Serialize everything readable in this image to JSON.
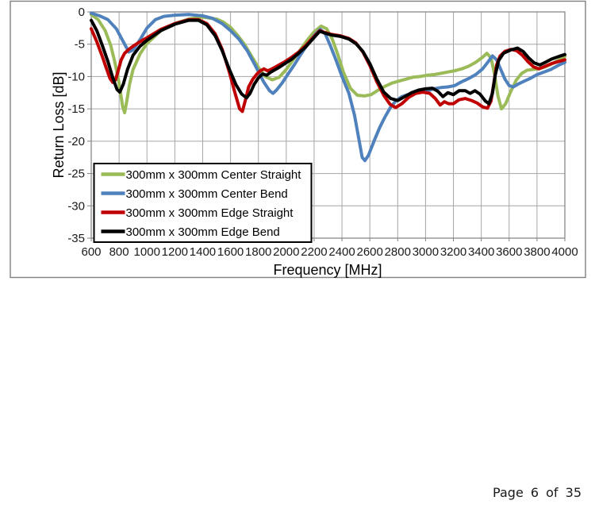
{
  "page": {
    "footer": "Page 6 of 35"
  },
  "chart_data": {
    "type": "line",
    "title": "",
    "xlabel": "Frequency [MHz]",
    "ylabel": "Return Loss [dB]",
    "xlim": [
      600,
      4000
    ],
    "ylim": [
      -35,
      0
    ],
    "xtick_step": 200,
    "ytick_step": 5,
    "grid": true,
    "legend_position": "inside-lower-left",
    "grid_color": "#a6a6a6",
    "axis_color": "#808080",
    "frame_color": "#808080",
    "series": [
      {
        "name": "300mm x 300mm Center Straight",
        "color": "#9BBB59",
        "points": [
          [
            600,
            -0.4
          ],
          [
            650,
            -1.2
          ],
          [
            700,
            -2.9
          ],
          [
            740,
            -5.2
          ],
          [
            770,
            -7.8
          ],
          [
            800,
            -11.0
          ],
          [
            825,
            -14.6
          ],
          [
            840,
            -15.6
          ],
          [
            855,
            -13.8
          ],
          [
            875,
            -11.2
          ],
          [
            900,
            -8.9
          ],
          [
            950,
            -6.5
          ],
          [
            1000,
            -4.9
          ],
          [
            1100,
            -2.9
          ],
          [
            1200,
            -1.8
          ],
          [
            1300,
            -1.1
          ],
          [
            1400,
            -0.8
          ],
          [
            1500,
            -1.1
          ],
          [
            1550,
            -1.6
          ],
          [
            1600,
            -2.4
          ],
          [
            1650,
            -3.6
          ],
          [
            1700,
            -5.0
          ],
          [
            1750,
            -6.8
          ],
          [
            1800,
            -8.6
          ],
          [
            1850,
            -10.0
          ],
          [
            1900,
            -10.5
          ],
          [
            1950,
            -10.1
          ],
          [
            2000,
            -8.9
          ],
          [
            2050,
            -7.4
          ],
          [
            2100,
            -5.9
          ],
          [
            2150,
            -4.4
          ],
          [
            2200,
            -3.1
          ],
          [
            2250,
            -2.2
          ],
          [
            2290,
            -2.6
          ],
          [
            2330,
            -4.2
          ],
          [
            2370,
            -6.6
          ],
          [
            2410,
            -9.3
          ],
          [
            2460,
            -11.8
          ],
          [
            2510,
            -12.9
          ],
          [
            2560,
            -13.0
          ],
          [
            2610,
            -12.8
          ],
          [
            2660,
            -12.1
          ],
          [
            2710,
            -11.5
          ],
          [
            2760,
            -11.0
          ],
          [
            2810,
            -10.7
          ],
          [
            2860,
            -10.4
          ],
          [
            2910,
            -10.1
          ],
          [
            2960,
            -10.0
          ],
          [
            3010,
            -9.8
          ],
          [
            3060,
            -9.7
          ],
          [
            3110,
            -9.5
          ],
          [
            3160,
            -9.3
          ],
          [
            3210,
            -9.1
          ],
          [
            3260,
            -8.8
          ],
          [
            3310,
            -8.4
          ],
          [
            3360,
            -7.8
          ],
          [
            3410,
            -7.0
          ],
          [
            3440,
            -6.4
          ],
          [
            3470,
            -7.1
          ],
          [
            3495,
            -9.6
          ],
          [
            3520,
            -13.0
          ],
          [
            3545,
            -15.0
          ],
          [
            3575,
            -14.2
          ],
          [
            3610,
            -12.4
          ],
          [
            3650,
            -10.6
          ],
          [
            3690,
            -9.5
          ],
          [
            3730,
            -9.0
          ],
          [
            3770,
            -8.9
          ],
          [
            3810,
            -8.8
          ],
          [
            3860,
            -8.5
          ],
          [
            3910,
            -8.0
          ],
          [
            3960,
            -7.4
          ],
          [
            4000,
            -6.9
          ]
        ]
      },
      {
        "name": "300mm x 300mm Center Bend",
        "color": "#4F81BD",
        "points": [
          [
            600,
            -0.2
          ],
          [
            660,
            -0.6
          ],
          [
            720,
            -1.2
          ],
          [
            780,
            -2.6
          ],
          [
            830,
            -4.6
          ],
          [
            870,
            -6.2
          ],
          [
            900,
            -5.9
          ],
          [
            950,
            -4.3
          ],
          [
            1000,
            -2.5
          ],
          [
            1060,
            -1.2
          ],
          [
            1120,
            -0.7
          ],
          [
            1200,
            -0.5
          ],
          [
            1300,
            -0.4
          ],
          [
            1400,
            -0.6
          ],
          [
            1470,
            -1.0
          ],
          [
            1540,
            -1.8
          ],
          [
            1600,
            -2.9
          ],
          [
            1660,
            -4.2
          ],
          [
            1720,
            -6.0
          ],
          [
            1780,
            -8.4
          ],
          [
            1840,
            -10.9
          ],
          [
            1880,
            -12.2
          ],
          [
            1905,
            -12.6
          ],
          [
            1930,
            -12.1
          ],
          [
            1970,
            -11.0
          ],
          [
            2010,
            -9.7
          ],
          [
            2060,
            -8.1
          ],
          [
            2110,
            -6.4
          ],
          [
            2160,
            -4.8
          ],
          [
            2210,
            -3.4
          ],
          [
            2245,
            -2.7
          ],
          [
            2280,
            -3.4
          ],
          [
            2320,
            -5.4
          ],
          [
            2360,
            -7.6
          ],
          [
            2400,
            -10.0
          ],
          [
            2450,
            -12.6
          ],
          [
            2490,
            -16.0
          ],
          [
            2520,
            -19.5
          ],
          [
            2545,
            -22.5
          ],
          [
            2565,
            -23.0
          ],
          [
            2590,
            -22.2
          ],
          [
            2630,
            -20.0
          ],
          [
            2670,
            -17.9
          ],
          [
            2710,
            -16.2
          ],
          [
            2750,
            -14.7
          ],
          [
            2790,
            -13.7
          ],
          [
            2830,
            -13.1
          ],
          [
            2870,
            -12.8
          ],
          [
            2910,
            -12.6
          ],
          [
            2960,
            -12.4
          ],
          [
            3010,
            -12.2
          ],
          [
            3060,
            -11.9
          ],
          [
            3110,
            -11.7
          ],
          [
            3160,
            -11.6
          ],
          [
            3210,
            -11.4
          ],
          [
            3260,
            -10.8
          ],
          [
            3310,
            -10.3
          ],
          [
            3360,
            -9.7
          ],
          [
            3410,
            -8.8
          ],
          [
            3450,
            -7.7
          ],
          [
            3480,
            -6.8
          ],
          [
            3510,
            -7.4
          ],
          [
            3540,
            -8.9
          ],
          [
            3570,
            -10.4
          ],
          [
            3600,
            -11.4
          ],
          [
            3630,
            -11.6
          ],
          [
            3670,
            -11.1
          ],
          [
            3710,
            -10.7
          ],
          [
            3750,
            -10.3
          ],
          [
            3800,
            -9.7
          ],
          [
            3850,
            -9.3
          ],
          [
            3900,
            -8.9
          ],
          [
            3950,
            -8.3
          ],
          [
            4000,
            -7.8
          ]
        ]
      },
      {
        "name": "300mm x 300mm Edge Straight",
        "color": "#C00000",
        "points": [
          [
            600,
            -2.6
          ],
          [
            640,
            -4.6
          ],
          [
            680,
            -6.9
          ],
          [
            710,
            -8.8
          ],
          [
            735,
            -10.3
          ],
          [
            755,
            -10.9
          ],
          [
            775,
            -10.5
          ],
          [
            795,
            -9.0
          ],
          [
            815,
            -7.4
          ],
          [
            840,
            -6.4
          ],
          [
            870,
            -5.8
          ],
          [
            900,
            -5.3
          ],
          [
            950,
            -4.6
          ],
          [
            1000,
            -4.0
          ],
          [
            1100,
            -2.7
          ],
          [
            1200,
            -1.8
          ],
          [
            1300,
            -1.2
          ],
          [
            1370,
            -1.2
          ],
          [
            1430,
            -1.8
          ],
          [
            1490,
            -3.4
          ],
          [
            1540,
            -5.8
          ],
          [
            1590,
            -9.2
          ],
          [
            1630,
            -12.4
          ],
          [
            1665,
            -15.0
          ],
          [
            1685,
            -15.4
          ],
          [
            1705,
            -13.8
          ],
          [
            1730,
            -11.6
          ],
          [
            1760,
            -10.4
          ],
          [
            1790,
            -9.6
          ],
          [
            1815,
            -9.1
          ],
          [
            1840,
            -8.8
          ],
          [
            1865,
            -9.1
          ],
          [
            1890,
            -8.9
          ],
          [
            1940,
            -8.3
          ],
          [
            1990,
            -7.7
          ],
          [
            2040,
            -7.0
          ],
          [
            2090,
            -6.2
          ],
          [
            2140,
            -5.2
          ],
          [
            2190,
            -4.0
          ],
          [
            2240,
            -2.9
          ],
          [
            2280,
            -3.2
          ],
          [
            2330,
            -3.5
          ],
          [
            2390,
            -3.7
          ],
          [
            2450,
            -4.1
          ],
          [
            2500,
            -4.8
          ],
          [
            2550,
            -6.2
          ],
          [
            2600,
            -8.3
          ],
          [
            2650,
            -10.8
          ],
          [
            2700,
            -12.9
          ],
          [
            2745,
            -14.3
          ],
          [
            2785,
            -14.8
          ],
          [
            2830,
            -14.2
          ],
          [
            2880,
            -13.2
          ],
          [
            2930,
            -12.6
          ],
          [
            2980,
            -12.4
          ],
          [
            3030,
            -12.6
          ],
          [
            3070,
            -13.4
          ],
          [
            3105,
            -14.4
          ],
          [
            3135,
            -13.9
          ],
          [
            3165,
            -14.2
          ],
          [
            3200,
            -14.2
          ],
          [
            3240,
            -13.6
          ],
          [
            3285,
            -13.4
          ],
          [
            3330,
            -13.7
          ],
          [
            3370,
            -14.1
          ],
          [
            3410,
            -14.7
          ],
          [
            3445,
            -14.9
          ],
          [
            3470,
            -13.8
          ],
          [
            3490,
            -11.0
          ],
          [
            3510,
            -8.2
          ],
          [
            3535,
            -6.8
          ],
          [
            3570,
            -6.1
          ],
          [
            3615,
            -5.8
          ],
          [
            3655,
            -6.0
          ],
          [
            3695,
            -6.7
          ],
          [
            3735,
            -7.7
          ],
          [
            3775,
            -8.5
          ],
          [
            3815,
            -8.8
          ],
          [
            3860,
            -8.4
          ],
          [
            3905,
            -8.0
          ],
          [
            3950,
            -7.7
          ],
          [
            4000,
            -7.4
          ]
        ]
      },
      {
        "name": "300mm x 300mm Edge Bend",
        "color": "#000000",
        "points": [
          [
            600,
            -1.3
          ],
          [
            640,
            -2.9
          ],
          [
            680,
            -5.2
          ],
          [
            720,
            -7.7
          ],
          [
            755,
            -10.2
          ],
          [
            785,
            -12.0
          ],
          [
            805,
            -12.4
          ],
          [
            830,
            -11.2
          ],
          [
            860,
            -8.9
          ],
          [
            900,
            -6.7
          ],
          [
            950,
            -5.3
          ],
          [
            1000,
            -4.4
          ],
          [
            1100,
            -2.9
          ],
          [
            1200,
            -1.9
          ],
          [
            1300,
            -1.3
          ],
          [
            1370,
            -1.3
          ],
          [
            1430,
            -2.0
          ],
          [
            1490,
            -3.7
          ],
          [
            1540,
            -6.0
          ],
          [
            1590,
            -8.8
          ],
          [
            1640,
            -11.3
          ],
          [
            1680,
            -12.7
          ],
          [
            1715,
            -13.3
          ],
          [
            1740,
            -12.6
          ],
          [
            1770,
            -11.2
          ],
          [
            1800,
            -10.2
          ],
          [
            1830,
            -9.6
          ],
          [
            1860,
            -9.8
          ],
          [
            1890,
            -9.3
          ],
          [
            1940,
            -8.7
          ],
          [
            1990,
            -8.0
          ],
          [
            2040,
            -7.3
          ],
          [
            2090,
            -6.4
          ],
          [
            2140,
            -5.4
          ],
          [
            2190,
            -4.2
          ],
          [
            2240,
            -3.0
          ],
          [
            2280,
            -3.3
          ],
          [
            2330,
            -3.6
          ],
          [
            2390,
            -3.8
          ],
          [
            2450,
            -4.2
          ],
          [
            2500,
            -4.9
          ],
          [
            2550,
            -6.1
          ],
          [
            2600,
            -8.0
          ],
          [
            2650,
            -10.4
          ],
          [
            2700,
            -12.4
          ],
          [
            2750,
            -13.4
          ],
          [
            2800,
            -13.7
          ],
          [
            2850,
            -13.1
          ],
          [
            2900,
            -12.5
          ],
          [
            2950,
            -12.1
          ],
          [
            3000,
            -11.9
          ],
          [
            3050,
            -11.8
          ],
          [
            3090,
            -12.3
          ],
          [
            3125,
            -13.1
          ],
          [
            3160,
            -12.5
          ],
          [
            3200,
            -12.8
          ],
          [
            3240,
            -12.2
          ],
          [
            3285,
            -12.2
          ],
          [
            3320,
            -12.6
          ],
          [
            3355,
            -12.2
          ],
          [
            3390,
            -12.7
          ],
          [
            3430,
            -13.8
          ],
          [
            3455,
            -14.2
          ],
          [
            3480,
            -12.6
          ],
          [
            3500,
            -9.8
          ],
          [
            3525,
            -7.5
          ],
          [
            3560,
            -6.4
          ],
          [
            3610,
            -5.9
          ],
          [
            3660,
            -5.6
          ],
          [
            3700,
            -6.1
          ],
          [
            3740,
            -7.1
          ],
          [
            3780,
            -7.9
          ],
          [
            3820,
            -8.2
          ],
          [
            3860,
            -7.8
          ],
          [
            3905,
            -7.3
          ],
          [
            3955,
            -6.9
          ],
          [
            4000,
            -6.6
          ]
        ]
      }
    ]
  }
}
